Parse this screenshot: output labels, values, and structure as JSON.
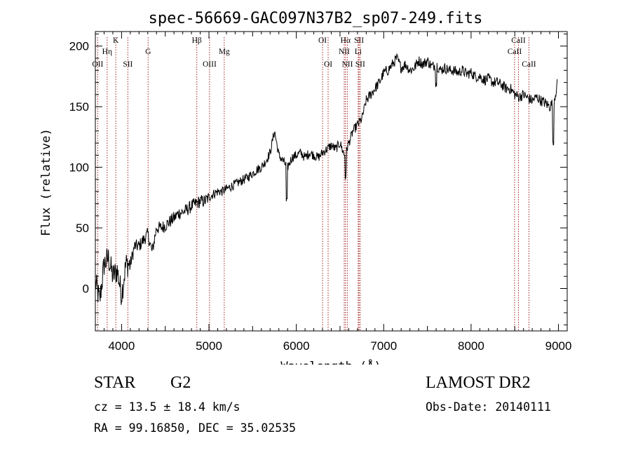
{
  "chart_data": {
    "type": "line",
    "title": "spec-56669-GAC097N37B2_sp07-249.fits",
    "xlabel": "Wavelength (Å)",
    "ylabel": "Flux (relative)",
    "xlim": [
      3700,
      9100
    ],
    "ylim": [
      -35,
      212
    ],
    "x_ticks": [
      4000,
      5000,
      6000,
      7000,
      8000,
      9000
    ],
    "y_ticks": [
      0,
      50,
      100,
      150,
      200
    ],
    "grid": false,
    "series": [
      {
        "x": [
          3700,
          3750,
          3800,
          3850,
          3900,
          3950,
          4000,
          4050,
          4100,
          4150,
          4200,
          4250,
          4300,
          4350,
          4400,
          4450,
          4500,
          4550,
          4600,
          4650,
          4700,
          4750,
          4800,
          4850,
          4900,
          4950,
          5000,
          5050,
          5100,
          5150,
          5200,
          5250,
          5300,
          5350,
          5400,
          5450,
          5500,
          5550,
          5600,
          5650,
          5700,
          5750,
          5800,
          5850,
          5900,
          5950,
          6000,
          6050,
          6100,
          6150,
          6200,
          6250,
          6300,
          6350,
          6400,
          6450,
          6500,
          6550,
          6600,
          6650,
          6700,
          6750,
          6800,
          6850,
          6900,
          6950,
          7000,
          7050,
          7100,
          7150,
          7200,
          7250,
          7300,
          7350,
          7400,
          7450,
          7500,
          7550,
          7600,
          7650,
          7700,
          7750,
          7800,
          7850,
          7900,
          7950,
          8000,
          8050,
          8100,
          8150,
          8200,
          8250,
          8300,
          8350,
          8400,
          8450,
          8500,
          8550,
          8600,
          8650,
          8700,
          8750,
          8800,
          8850,
          8900,
          8950,
          8990
        ],
        "y": [
          5,
          -10,
          20,
          25,
          10,
          15,
          -5,
          20,
          20,
          35,
          35,
          40,
          45,
          30,
          50,
          50,
          52,
          55,
          58,
          62,
          63,
          65,
          68,
          70,
          72,
          72,
          75,
          78,
          80,
          80,
          82,
          84,
          86,
          88,
          90,
          92,
          95,
          98,
          100,
          105,
          112,
          130,
          110,
          105,
          100,
          108,
          110,
          112,
          108,
          112,
          110,
          108,
          112,
          115,
          118,
          115,
          120,
          110,
          120,
          130,
          135,
          140,
          155,
          160,
          165,
          170,
          178,
          180,
          185,
          190,
          182,
          185,
          180,
          182,
          188,
          185,
          188,
          183,
          185,
          180,
          182,
          180,
          180,
          178,
          180,
          177,
          178,
          175,
          175,
          172,
          173,
          170,
          170,
          168,
          165,
          165,
          160,
          158,
          160,
          157,
          155,
          158,
          155,
          153,
          150,
          155,
          170
        ]
      }
    ],
    "line_markers": [
      {
        "label": "OII",
        "x": 3727,
        "row": 3
      },
      {
        "label": "Hη",
        "x": 3835,
        "row": 2
      },
      {
        "label": "K",
        "x": 3934,
        "row": 1
      },
      {
        "label": "SII",
        "x": 4072,
        "row": 3
      },
      {
        "label": "G",
        "x": 4304,
        "row": 2
      },
      {
        "label": "Hβ",
        "x": 4861,
        "row": 1
      },
      {
        "label": "OIII",
        "x": 5007,
        "row": 3
      },
      {
        "label": "Mg",
        "x": 5175,
        "row": 2
      },
      {
        "label": "OI",
        "x": 6300,
        "row": 1
      },
      {
        "label": "OI",
        "x": 6364,
        "row": 3
      },
      {
        "label": "Hα",
        "x": 6563,
        "row": 1
      },
      {
        "label": "NII",
        "x": 6548,
        "row": 2
      },
      {
        "label": "NII",
        "x": 6584,
        "row": 3
      },
      {
        "label": "SII",
        "x": 6717,
        "row": 1
      },
      {
        "label": "Li",
        "x": 6708,
        "row": 2
      },
      {
        "label": "SII",
        "x": 6731,
        "row": 3
      },
      {
        "label": "CaII",
        "x": 8498,
        "row": 2
      },
      {
        "label": "CaII",
        "x": 8542,
        "row": 1
      },
      {
        "label": "CaII",
        "x": 8662,
        "row": 3
      }
    ]
  },
  "info": {
    "class": "STAR",
    "subclass": "G2",
    "release": "LAMOST DR2",
    "cz": "cz = 13.5 ± 18.4 km/s",
    "obs_date": "Obs-Date: 20140111",
    "coords": "RA =  99.16850, DEC =  35.02535"
  }
}
